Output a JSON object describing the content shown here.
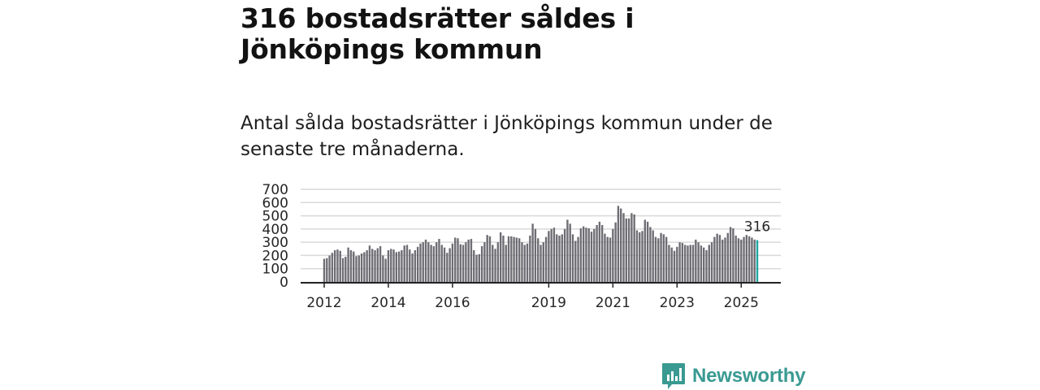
{
  "title": "316 bostadsrätter såldes i Jönköpings kommun",
  "subtitle": "Antal sålda bostadsrätter i Jönköpings kommun under de senaste tre månaderna.",
  "brand": {
    "name": "Newsworthy",
    "color": "#3a9a92"
  },
  "colors": {
    "bar": "#6e6d74",
    "highlight": "#1aa7a0",
    "grid": "#d9d9d9",
    "axis": "#222222"
  },
  "chart_data": {
    "type": "bar",
    "title": "",
    "xlabel": "",
    "ylabel": "",
    "ylim": [
      0,
      700
    ],
    "grid": true,
    "yticks": [
      "0",
      "100",
      "200",
      "300",
      "400",
      "500",
      "600",
      "700"
    ],
    "xticks": [
      {
        "label": "2012",
        "index": 0
      },
      {
        "label": "2014",
        "index": 24
      },
      {
        "label": "2016",
        "index": 48
      },
      {
        "label": "2019",
        "index": 84
      },
      {
        "label": "2021",
        "index": 108
      },
      {
        "label": "2023",
        "index": 132
      },
      {
        "label": "2025",
        "index": 156
      }
    ],
    "start_period": "2012-01",
    "values": [
      175,
      180,
      200,
      220,
      240,
      245,
      235,
      180,
      190,
      260,
      240,
      230,
      195,
      200,
      215,
      225,
      240,
      275,
      250,
      240,
      255,
      270,
      200,
      175,
      240,
      250,
      245,
      225,
      230,
      240,
      275,
      280,
      245,
      215,
      240,
      265,
      290,
      300,
      320,
      300,
      280,
      270,
      300,
      325,
      280,
      260,
      220,
      255,
      290,
      335,
      330,
      285,
      280,
      300,
      320,
      325,
      240,
      205,
      210,
      270,
      300,
      355,
      345,
      280,
      250,
      300,
      375,
      350,
      280,
      345,
      345,
      340,
      335,
      330,
      300,
      280,
      290,
      350,
      440,
      400,
      330,
      280,
      300,
      340,
      385,
      400,
      410,
      360,
      350,
      360,
      400,
      470,
      440,
      360,
      310,
      340,
      405,
      420,
      410,
      405,
      380,
      400,
      430,
      455,
      430,
      365,
      340,
      335,
      400,
      450,
      575,
      555,
      520,
      480,
      480,
      520,
      510,
      390,
      375,
      385,
      470,
      455,
      415,
      390,
      340,
      330,
      370,
      360,
      340,
      280,
      260,
      235,
      265,
      300,
      295,
      280,
      275,
      280,
      280,
      320,
      300,
      275,
      260,
      240,
      280,
      300,
      340,
      365,
      355,
      320,
      335,
      370,
      415,
      405,
      350,
      330,
      320,
      340,
      355,
      345,
      335,
      320,
      316
    ],
    "highlight_last": 1,
    "annotation": "316"
  }
}
